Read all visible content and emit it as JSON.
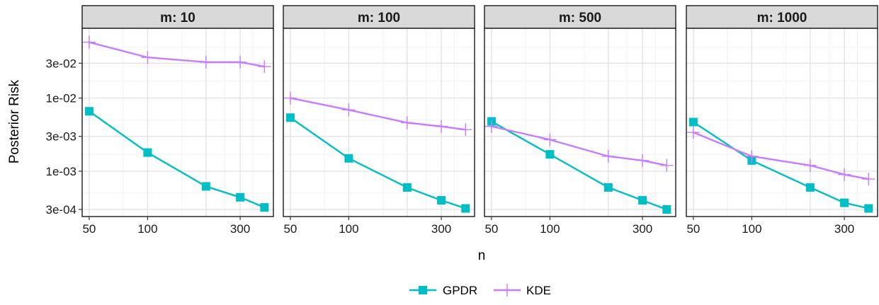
{
  "chart_data": {
    "type": "line",
    "facet_var": "m",
    "facets": [
      {
        "label": "m: 10",
        "series": [
          {
            "name": "GPDR",
            "x": [
              50,
              100,
              200,
              300,
              400
            ],
            "y": [
              0.0066,
              0.0018,
              0.00062,
              0.00044,
              0.00032
            ]
          },
          {
            "name": "KDE",
            "x": [
              50,
              100,
              200,
              300,
              400
            ],
            "y": [
              0.058,
              0.036,
              0.031,
              0.031,
              0.027
            ]
          }
        ]
      },
      {
        "label": "m: 100",
        "series": [
          {
            "name": "GPDR",
            "x": [
              50,
              100,
              200,
              300,
              400
            ],
            "y": [
              0.0054,
              0.0015,
              0.0006,
              0.0004,
              0.00031
            ]
          },
          {
            "name": "KDE",
            "x": [
              50,
              100,
              200,
              300,
              400
            ],
            "y": [
              0.01,
              0.0069,
              0.0046,
              0.0041,
              0.0037
            ]
          }
        ]
      },
      {
        "label": "m: 500",
        "series": [
          {
            "name": "GPDR",
            "x": [
              50,
              100,
              200,
              300,
              400
            ],
            "y": [
              0.0048,
              0.0017,
              0.0006,
              0.0004,
              0.0003
            ]
          },
          {
            "name": "KDE",
            "x": [
              50,
              100,
              200,
              300,
              400
            ],
            "y": [
              0.0041,
              0.0027,
              0.0016,
              0.0014,
              0.0012
            ]
          }
        ]
      },
      {
        "label": "m: 1000",
        "series": [
          {
            "name": "GPDR",
            "x": [
              50,
              100,
              200,
              300,
              400
            ],
            "y": [
              0.0047,
              0.0014,
              0.0006,
              0.00037,
              0.00031
            ]
          },
          {
            "name": "KDE",
            "x": [
              50,
              100,
              200,
              300,
              400
            ],
            "y": [
              0.0034,
              0.0016,
              0.0012,
              0.0009,
              0.00078
            ]
          }
        ]
      }
    ],
    "xlabel": "n",
    "ylabel": "Posterior Risk",
    "x_scale": "log",
    "y_scale": "log",
    "xlim": [
      46,
      445
    ],
    "ylim": [
      0.00024,
      0.09
    ],
    "x_ticks": [
      50,
      100,
      300
    ],
    "x_tick_labels": [
      "50",
      "100",
      "300"
    ],
    "y_ticks": [
      0.0003,
      0.001,
      0.003,
      0.01,
      0.03
    ],
    "y_tick_labels": [
      "3e-04",
      "1e-03",
      "3e-03",
      "1e-02",
      "3e-02"
    ],
    "grid": true,
    "legend_position": "bottom",
    "legend": [
      {
        "name": "GPDR",
        "marker": "square"
      },
      {
        "name": "KDE",
        "marker": "plus"
      }
    ],
    "colors": {
      "GPDR": "#00bfc4",
      "KDE": "#c77cff"
    }
  }
}
